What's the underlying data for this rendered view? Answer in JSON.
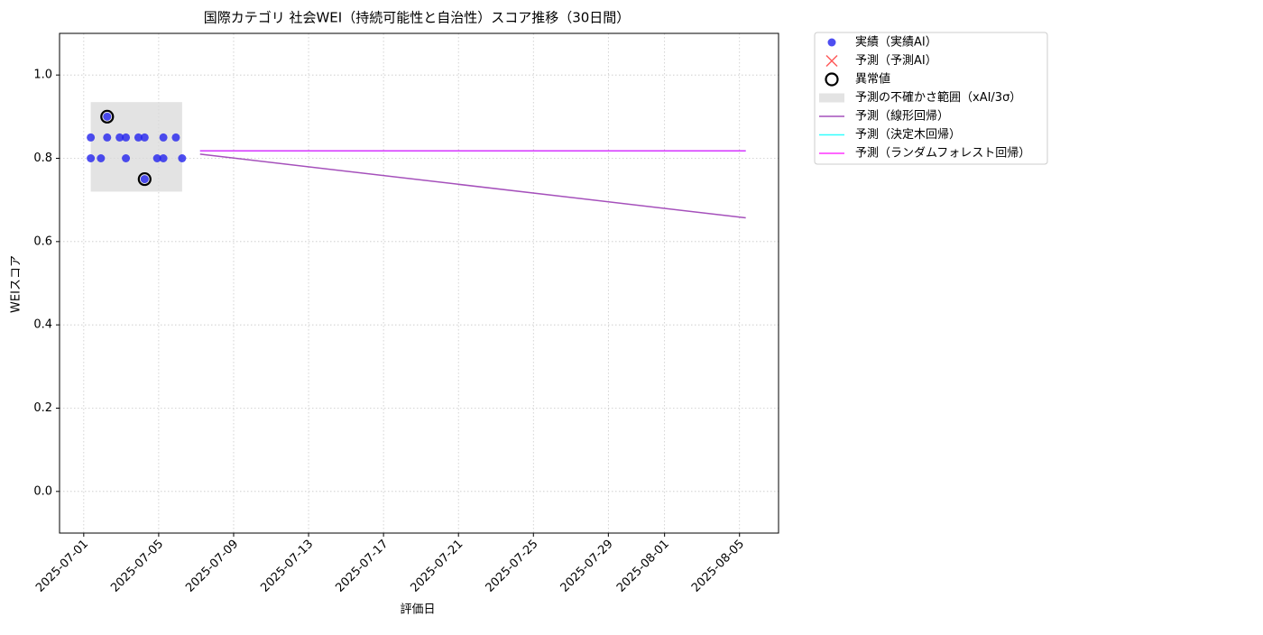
{
  "chart_data": {
    "type": "scatter",
    "title": "国際カテゴリ 社会WEI（持続可能性と自治性）スコア推移（30日間）",
    "x_label": "評価日",
    "y_label": "WEIスコア",
    "xlim": [
      "2025-06-29T17:00",
      "2025-08-07T02:00"
    ],
    "ylim": [
      -0.1,
      1.1
    ],
    "xticks": [
      "2025-07-01",
      "2025-07-05",
      "2025-07-09",
      "2025-07-13",
      "2025-07-17",
      "2025-07-21",
      "2025-07-25",
      "2025-07-29",
      "2025-08-01",
      "2025-08-05"
    ],
    "yticks": [
      {
        "value": 0,
        "label": "0.0"
      },
      0.2,
      0.4,
      0.6,
      0.8,
      {
        "value": 1,
        "label": "1.0"
      }
    ],
    "grid": true,
    "legend": "outside-upper-right",
    "series": [
      {
        "name": "実績（実績AI）",
        "kind": "scatter",
        "color": "#2222ee",
        "x": [
          "2025-07-01T09:00",
          "2025-07-01T09:00",
          "2025-07-01T22:00",
          "2025-07-02T06:00",
          "2025-07-02T06:00",
          "2025-07-02T22:00",
          "2025-07-03T06:00",
          "2025-07-03T06:00",
          "2025-07-03T22:00",
          "2025-07-04T06:00",
          "2025-07-04T06:00",
          "2025-07-04T22:00",
          "2025-07-05T06:00",
          "2025-07-05T06:00",
          "2025-07-05T22:00",
          "2025-07-06T06:00"
        ],
        "values": [
          0.85,
          0.8,
          0.8,
          0.9,
          0.85,
          0.85,
          0.85,
          0.8,
          0.85,
          0.85,
          0.75,
          0.8,
          0.85,
          0.8,
          0.85,
          0.8
        ]
      },
      {
        "name": "予測（予測AI）",
        "kind": "cross",
        "color": "#ff3333",
        "x": [],
        "values": []
      },
      {
        "name": "異常値",
        "kind": "ring",
        "color": "#000000",
        "x": [
          "2025-07-02T06:00",
          "2025-07-04T06:00"
        ],
        "values": [
          0.9,
          0.75
        ]
      },
      {
        "name": "予測の不確かさ範囲（xAI/3σ）",
        "kind": "band",
        "color": "#d9d9d9",
        "x": [
          "2025-07-01T09:00",
          "2025-07-06T06:00"
        ],
        "low": 0.72,
        "high": 0.935
      },
      {
        "name": "予測（線形回帰）",
        "kind": "line",
        "color": "#8e24aa",
        "x": [
          "2025-07-07T05:00",
          "2025-08-05T08:00"
        ],
        "values": [
          0.81,
          0.657
        ]
      },
      {
        "name": "予測（決定木回帰）",
        "kind": "line",
        "color": "#00ffff",
        "x": [
          "2025-07-07T05:00",
          "2025-08-05T08:00"
        ],
        "values": [
          0.818,
          0.818
        ]
      },
      {
        "name": "予測（ランダムフォレスト回帰）",
        "kind": "line",
        "color": "#ff00ff",
        "x": [
          "2025-07-07T05:00",
          "2025-08-05T08:00"
        ],
        "values": [
          0.818,
          0.818
        ]
      }
    ]
  }
}
